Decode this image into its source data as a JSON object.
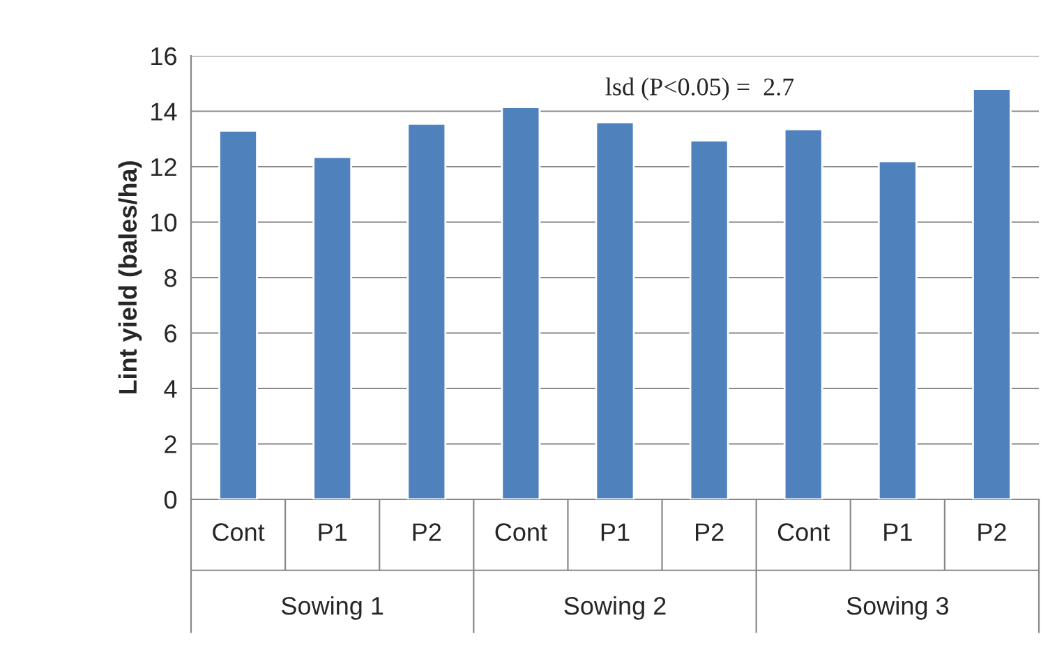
{
  "chart_data": {
    "type": "bar",
    "ylabel": "Lint yield (bales/ha)",
    "categories": [
      "Cont",
      "P1",
      "P2",
      "Cont",
      "P1",
      "P2",
      "Cont",
      "P1",
      "P2"
    ],
    "values": [
      13.3,
      12.35,
      13.55,
      14.15,
      13.6,
      12.95,
      13.35,
      12.2,
      14.8
    ],
    "color": "#4f81bd",
    "ylim": [
      0,
      16
    ],
    "yticks": [
      0,
      2,
      4,
      6,
      8,
      10,
      12,
      14,
      16
    ],
    "grid": "y",
    "annotations": [
      "lsd (P<0.05) =  2.7",
      "Sowing 1",
      "Sowing 2",
      "Sowing 3"
    ]
  }
}
